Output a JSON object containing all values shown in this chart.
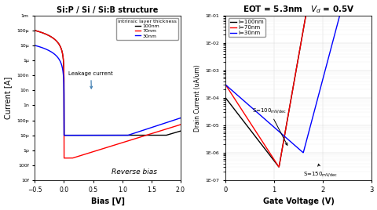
{
  "title_left": "Si:P / Si / Si:B structure",
  "title_right": "EOT = 5.3nm   $V_d$ = 0.5V",
  "xlabel_left": "Bias [V]",
  "ylabel_left": "Current [A]",
  "xlabel_right": "Gate Voltage (V)",
  "ylabel_right": "Drain Current (uA/um)",
  "legend_left_title": "intrinsic layer thickness",
  "legend_left": [
    "100nm",
    "70nm",
    "30nm"
  ],
  "legend_right": [
    "i=100nm",
    "i=70nm",
    "i=30nm"
  ],
  "colors": [
    "black",
    "red",
    "blue"
  ],
  "leakage_text": "Leakage current",
  "reverse_bias_text": "Reverse bias",
  "yticks_left": [
    1e-14,
    1e-13,
    1e-12,
    1e-11,
    1e-10,
    1e-09,
    1e-08,
    1e-07,
    1e-06,
    1e-05,
    0.0001,
    0.001
  ],
  "ylabels_left": [
    "10f",
    "100f",
    "1p",
    "10p",
    "100p",
    "1n",
    "10n",
    "100n",
    "1μ",
    "10μ",
    "100μ",
    "1m"
  ],
  "yticks_right": [
    1e-07,
    1e-06,
    1e-05,
    0.0001,
    0.001,
    0.01,
    0.1
  ],
  "ylabels_right": [
    "1E-07",
    "1E-06",
    "1E-05",
    "1E-04",
    "1E-03",
    "1E-02",
    "1E-01"
  ]
}
